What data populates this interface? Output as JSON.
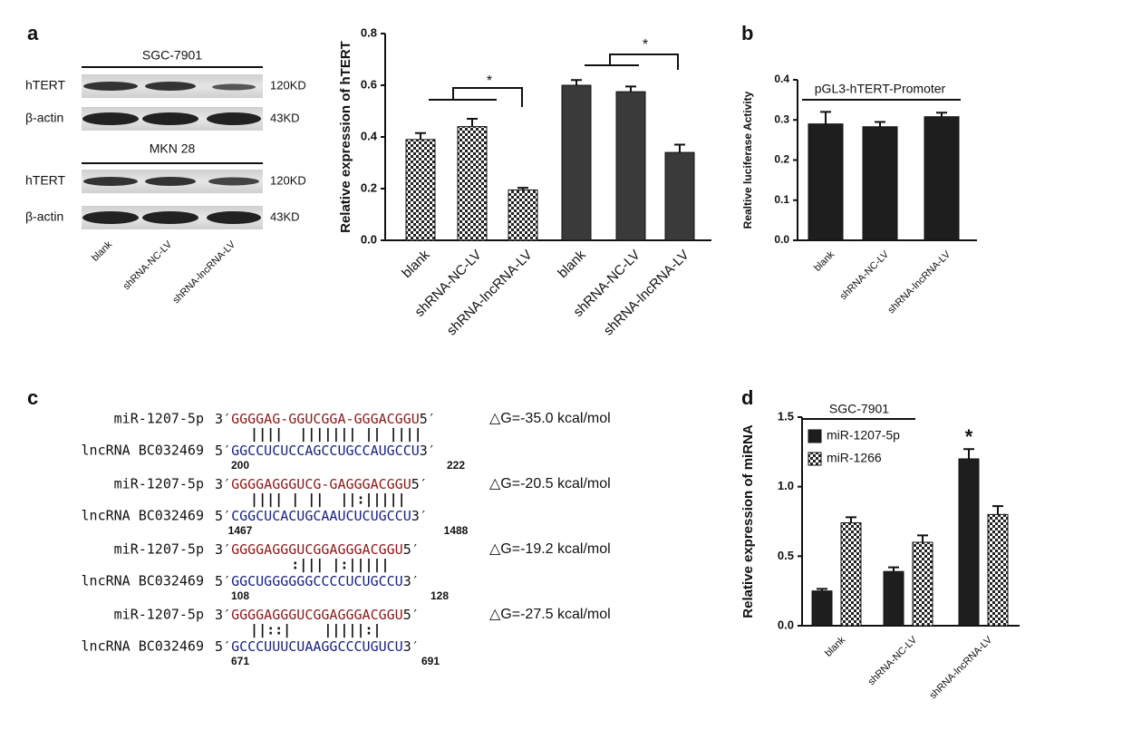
{
  "panel_labels": [
    "a",
    "b",
    "c",
    "d"
  ],
  "blot": {
    "cell_lines": [
      {
        "name": "SGC-7901",
        "rows": [
          {
            "protein": "hTERT",
            "size": "120KD"
          },
          {
            "protein": "β-actin",
            "size": "43KD"
          }
        ]
      },
      {
        "name": "MKN 28",
        "rows": [
          {
            "protein": "hTERT",
            "size": "120KD"
          },
          {
            "protein": "β-actin",
            "size": "43KD"
          }
        ]
      }
    ],
    "lanes": [
      "blank",
      "shRNA-NC-LV",
      "shRNA-lncRNA-LV"
    ]
  },
  "alignments": [
    {
      "mirna": "miR-1207-5p",
      "mirna_ends": [
        "3′",
        "5′"
      ],
      "mirna_seq": "GGGGAG-GGUCGGA-GGGACGGU",
      "pairing": "  ||||  ||||||| || ||||",
      "lncrna": "lncRNA BC032469",
      "lncrna_ends": [
        "5′",
        "3′"
      ],
      "lncrna_seq": "GGCCUCUCCAGCCUGCCAUGCCU",
      "start": 200,
      "end": 222,
      "dG": "△G=-35.0 kcal/mol"
    },
    {
      "mirna": "miR-1207-5p",
      "mirna_ends": [
        "3′",
        "5′"
      ],
      "mirna_seq": "GGGGAGGGUCG-GAGGGACGGU",
      "pairing": "  |||| | ||  ||:|||||",
      "lncrna": "lncRNA BC032469",
      "lncrna_ends": [
        "5′",
        "3′"
      ],
      "lncrna_seq": "CGGCUCACUGCAAUCUCUGCCU",
      "start": 1467,
      "end": 1488,
      "dG": "△G=-20.5 kcal/mol"
    },
    {
      "mirna": "miR-1207-5p",
      "mirna_ends": [
        "3′",
        "5′"
      ],
      "mirna_seq": "GGGGAGGGUCGGAGGGACGGU",
      "pairing": "       :||| |:|||||",
      "lncrna": "lncRNA BC032469",
      "lncrna_ends": [
        "5′",
        "3′"
      ],
      "lncrna_seq": "GGCUGGGGGGCCCCUCUGCCU",
      "start": 108,
      "end": 128,
      "dG": "△G=-19.2 kcal/mol"
    },
    {
      "mirna": "miR-1207-5p",
      "mirna_ends": [
        "3′",
        "5′"
      ],
      "mirna_seq": "GGGGAGGGUCGGAGGGACGGU",
      "pairing": "  ||::|    |||||:|",
      "lncrna": "lncRNA BC032469",
      "lncrna_ends": [
        "5′",
        "3′"
      ],
      "lncrna_seq": "GCCCUUUCUAAGGCCCUGUCU",
      "start": 671,
      "end": 691,
      "dG": "△G=-27.5 kcal/mol"
    }
  ],
  "chart_data": [
    {
      "type": "bar",
      "ylabel": "Relative expression of hTERT",
      "categories": [
        "blank",
        "shRNA-NC-LV",
        "shRNA-lncRNA-LV",
        "blank",
        "shRNA-NC-LV",
        "shRNA-lncRNA-LV"
      ],
      "values": [
        0.39,
        0.44,
        0.195,
        0.6,
        0.575,
        0.34
      ],
      "errors": [
        0.025,
        0.03,
        0.008,
        0.02,
        0.02,
        0.03
      ],
      "styles": [
        "checkered",
        "checkered",
        "checkered",
        "solid",
        "solid",
        "solid"
      ],
      "color": "#3a3a3a",
      "ylim": [
        0,
        0.8
      ],
      "yticks": [
        {
          "value": 0,
          "label": "0.0"
        },
        0.2,
        0.4,
        0.6,
        0.8
      ],
      "annotations": [
        "*",
        "*"
      ]
    },
    {
      "type": "bar",
      "title": "pGL3-hTERT-Promoter",
      "ylabel": "Realtive luciferase Activity",
      "categories": [
        "blank",
        "shRNA-NC-LV",
        "shRNA-lncRNA-LV"
      ],
      "values": [
        0.29,
        0.283,
        0.308
      ],
      "errors": [
        0.03,
        0.012,
        0.01
      ],
      "color": "#1e1e1e",
      "ylim": [
        0,
        0.4
      ],
      "yticks": [
        {
          "value": 0,
          "label": "0.0"
        },
        0.1,
        0.2,
        0.3,
        0.4
      ]
    },
    {
      "type": "grouped_bar",
      "ylabel": "Relative expression of miRNA",
      "legend_title": "SGC-7901",
      "categories": [
        "blank",
        "shRNA-NC-LV",
        "shRNA-lncRNA-LV"
      ],
      "series": [
        {
          "name": "miR-1207-5p",
          "color": "#1e1e1e",
          "values": [
            0.25,
            0.39,
            1.2
          ],
          "errors": [
            0.015,
            0.03,
            0.07
          ]
        },
        {
          "name": "miR-1266",
          "color": "checkered",
          "values": [
            0.74,
            0.6,
            0.8
          ],
          "errors": [
            0.04,
            0.05,
            0.06
          ]
        }
      ],
      "ylim": [
        0,
        1.5
      ],
      "yticks": [
        {
          "value": 0,
          "label": "0.0"
        },
        0.5,
        {
          "value": 1,
          "label": "1.0"
        },
        1.5
      ],
      "annotations": [
        "*"
      ]
    }
  ]
}
